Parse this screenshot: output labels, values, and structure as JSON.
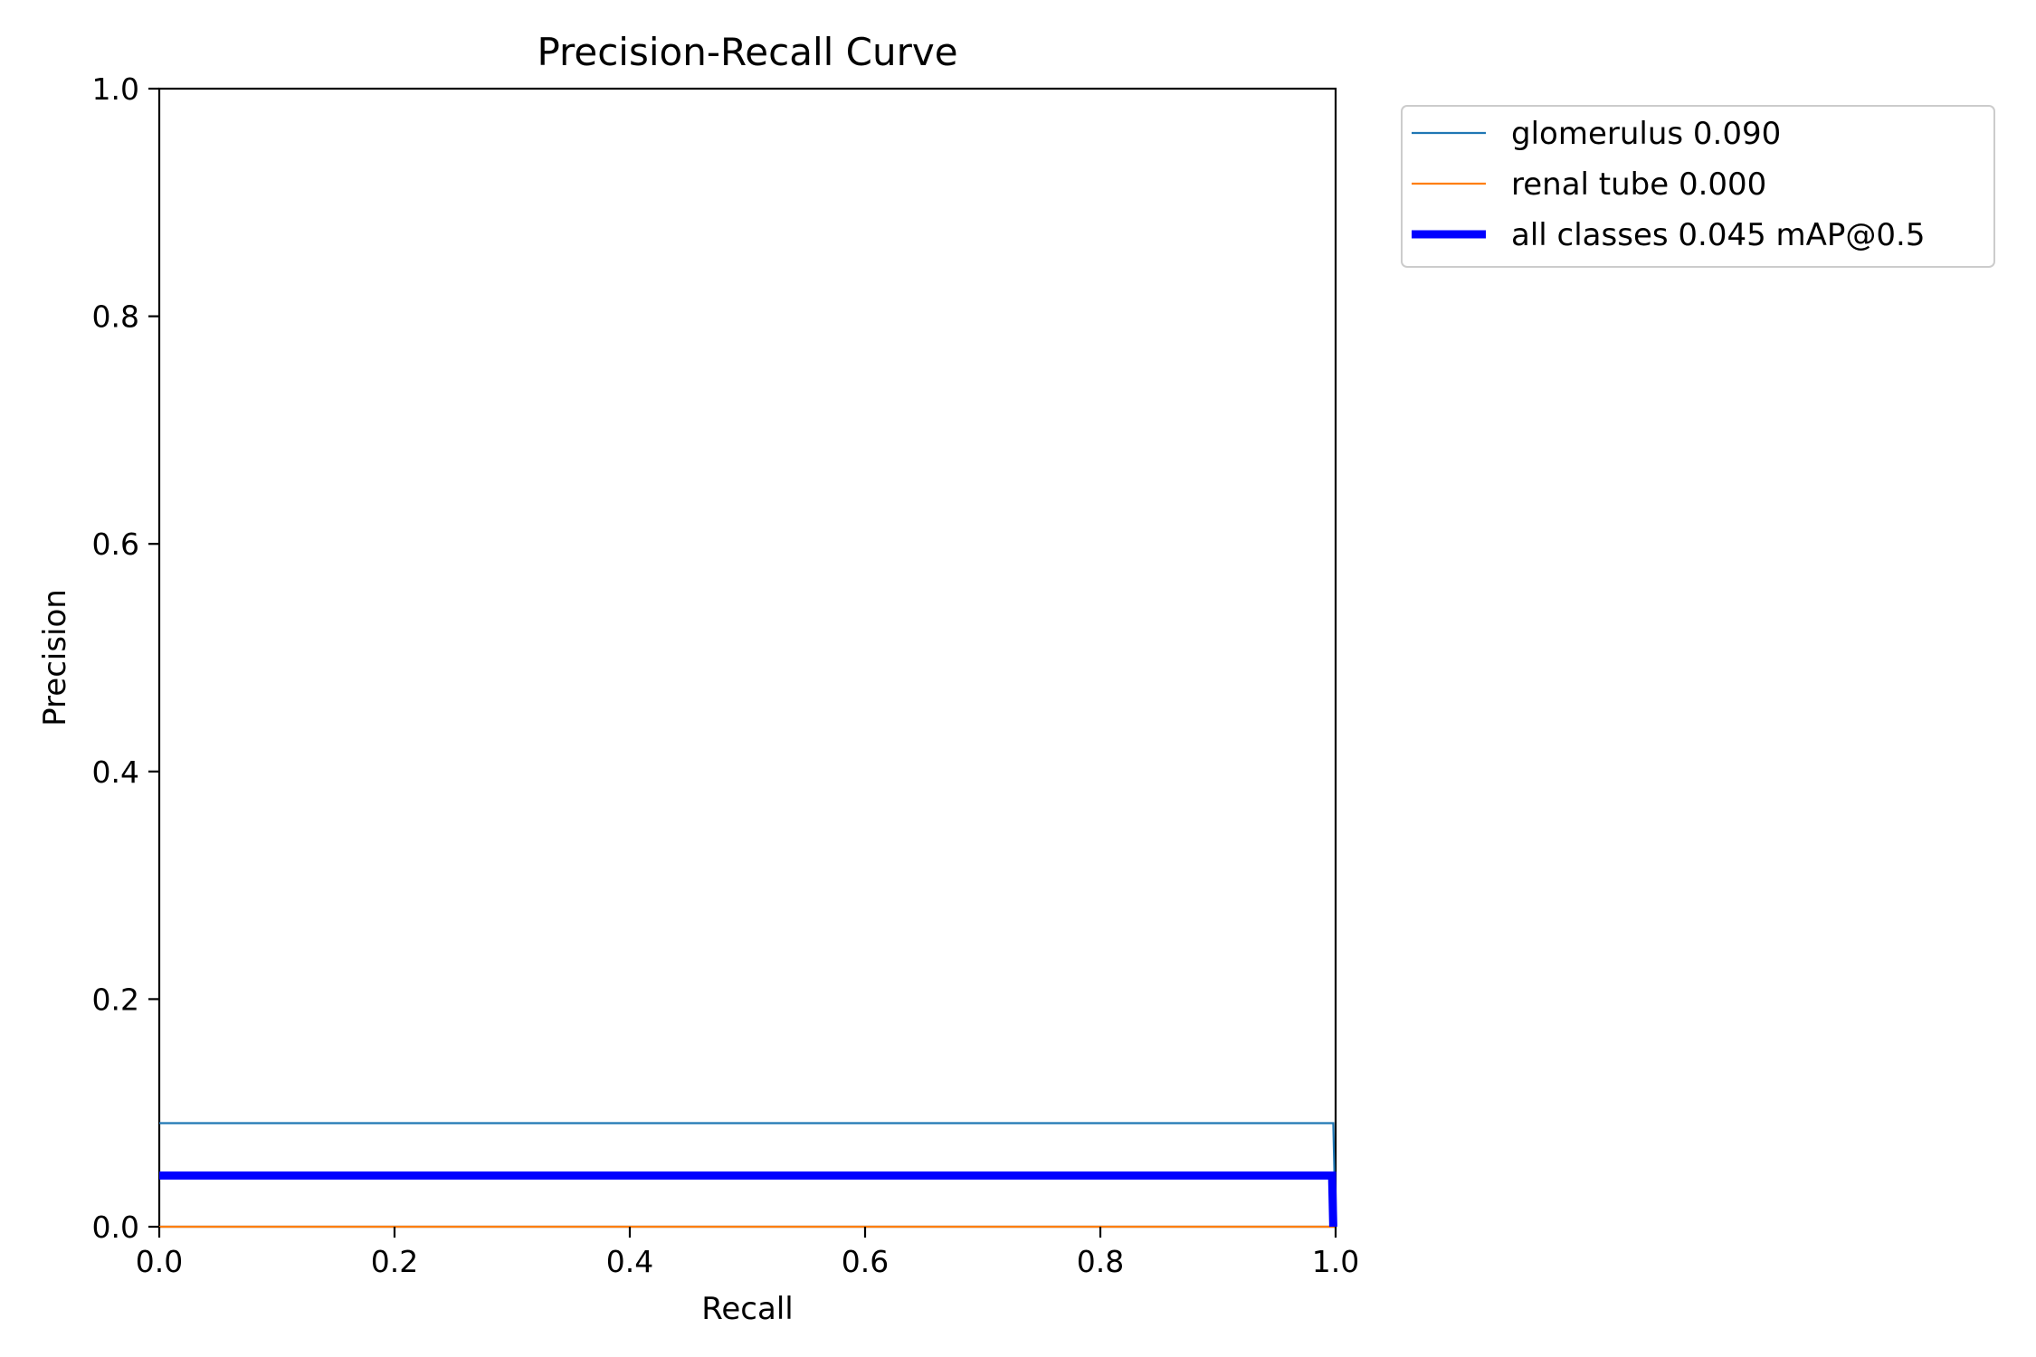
{
  "chart_data": {
    "type": "line",
    "title": "Precision-Recall Curve",
    "xlabel": "Recall",
    "ylabel": "Precision",
    "xlim": [
      0,
      1
    ],
    "ylim": [
      0,
      1
    ],
    "xticks": [
      "0.0",
      "0.2",
      "0.4",
      "0.6",
      "0.8",
      "1.0"
    ],
    "yticks": [
      "0.0",
      "0.2",
      "0.4",
      "0.6",
      "0.8",
      "1.0"
    ],
    "grid": false,
    "legend_position": "outside-top-right",
    "series": [
      {
        "name": "glomerulus 0.090",
        "color": "#1f77b4",
        "line_width": "thin",
        "x": [
          0.0,
          0.998,
          1.0
        ],
        "y": [
          0.091,
          0.091,
          0.0
        ]
      },
      {
        "name": "renal tube 0.000",
        "color": "#ff7f0e",
        "line_width": "thin",
        "x": [
          0.0,
          1.0
        ],
        "y": [
          0.0,
          0.0
        ]
      },
      {
        "name": "all classes 0.045 mAP@0.5",
        "color": "#0000ff",
        "line_width": "thick",
        "x": [
          0.0,
          0.997,
          0.998
        ],
        "y": [
          0.045,
          0.045,
          0.0
        ]
      }
    ]
  }
}
